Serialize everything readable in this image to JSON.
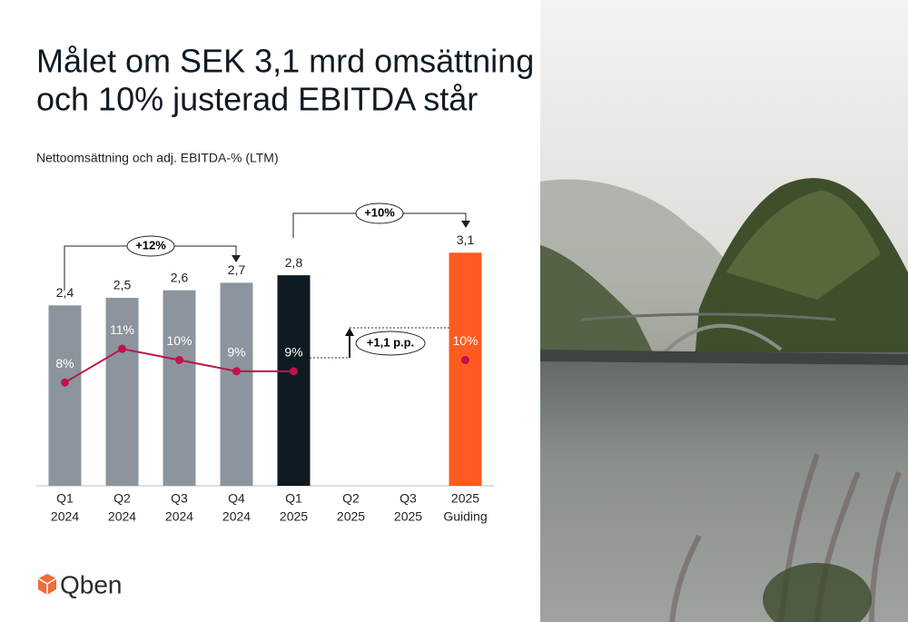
{
  "chart_data": {
    "type": "bar-line",
    "title": [
      "Målet om SEK 3,1 mrd omsättning",
      "och 10% justerad EBITDA står"
    ],
    "subtitle": "Nettoomsättning och adj. EBITDA-% (LTM)",
    "categories": [
      [
        "Q1",
        "2024"
      ],
      [
        "Q2",
        "2024"
      ],
      [
        "Q3",
        "2024"
      ],
      [
        "Q4",
        "2024"
      ],
      [
        "Q1",
        "2025"
      ],
      [
        "Q2",
        "2025"
      ],
      [
        "Q3",
        "2025"
      ],
      [
        "2025",
        "Guiding"
      ]
    ],
    "series": [
      {
        "type": "bar",
        "values": [
          2.4,
          2.5,
          2.6,
          2.7,
          2.8,
          null,
          null,
          3.1
        ],
        "value_labels": [
          "2,4",
          "2,5",
          "2,6",
          "2,7",
          "2,8",
          null,
          null,
          "3,1"
        ],
        "colors": [
          "#8c959d",
          "#8c959d",
          "#8c959d",
          "#8c959d",
          "#0f1b23",
          null,
          null,
          "#ff5a1f"
        ]
      },
      {
        "type": "line",
        "axis": "y2",
        "values": [
          8,
          11,
          10,
          9,
          9,
          null,
          null,
          10
        ],
        "value_labels": [
          "8%",
          "11%",
          "10%",
          "9%",
          "9%",
          null,
          null,
          "10%"
        ],
        "color": "#c0144a"
      }
    ],
    "ylim": [
      0,
      3.2
    ],
    "y2lim": [
      0,
      20
    ],
    "annotations": [
      "+12%",
      "+10%",
      "+1,1 p.p."
    ],
    "logo": "Qben"
  }
}
